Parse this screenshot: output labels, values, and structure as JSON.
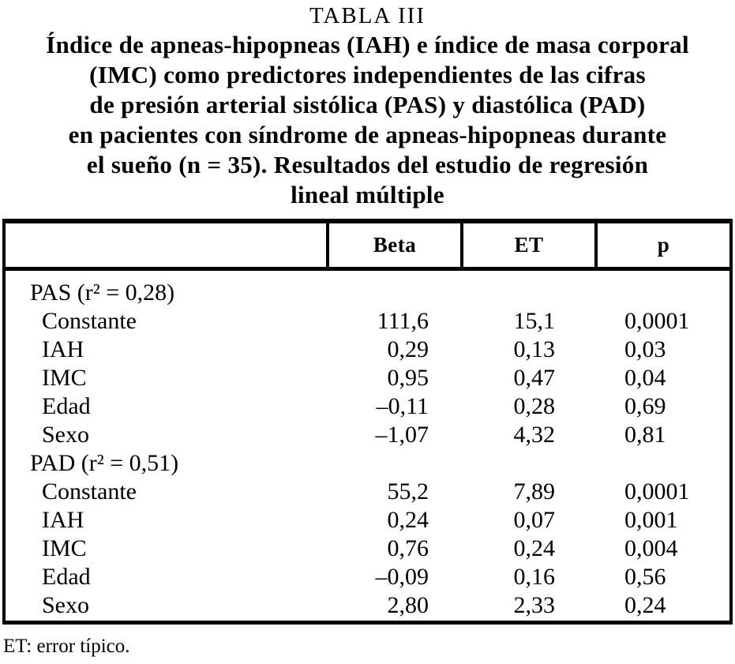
{
  "title": {
    "label": "TABLA III",
    "lines": [
      "Índice de apneas-hipopneas (IAH) e índice de masa corporal",
      "(IMC) como predictores independientes de las cifras",
      "de presión arterial sistólica (PAS) y diastólica (PAD)",
      "en pacientes con síndrome de apneas-hipopneas durante",
      "el sueño (n = 35). Resultados del estudio de regresión",
      "lineal múltiple"
    ]
  },
  "table": {
    "columns": [
      "",
      "Beta",
      "ET",
      "p"
    ],
    "rows": [
      {
        "label": "PAS (r² = 0,28)",
        "beta": "",
        "et": "",
        "p": ""
      },
      {
        "label": "Constante",
        "beta": "111,6",
        "et": "15,1",
        "p": "0,0001"
      },
      {
        "label": "IAH",
        "beta": "0,29",
        "et": "0,13",
        "p": "0,03"
      },
      {
        "label": "IMC",
        "beta": "0,95",
        "et": "0,47",
        "p": "0,04"
      },
      {
        "label": "Edad",
        "beta": "–0,11",
        "et": "0,28",
        "p": "0,69"
      },
      {
        "label": "Sexo",
        "beta": "–1,07",
        "et": "4,32",
        "p": "0,81"
      },
      {
        "label": "PAD (r² = 0,51)",
        "beta": "",
        "et": "",
        "p": ""
      },
      {
        "label": "Constante",
        "beta": "55,2",
        "et": "7,89",
        "p": "0,0001"
      },
      {
        "label": "IAH",
        "beta": "0,24",
        "et": "0,07",
        "p": "0,001"
      },
      {
        "label": "IMC",
        "beta": "0,76",
        "et": "0,24",
        "p": "0,004"
      },
      {
        "label": "Edad",
        "beta": "–0,09",
        "et": "0,16",
        "p": "0,56"
      },
      {
        "label": "Sexo",
        "beta": "2,80",
        "et": "2,33",
        "p": "0,24"
      }
    ]
  },
  "footnote": "ET: error típico.",
  "colors": {
    "text": "#000000",
    "background": "#ffffff",
    "border": "#000000"
  }
}
